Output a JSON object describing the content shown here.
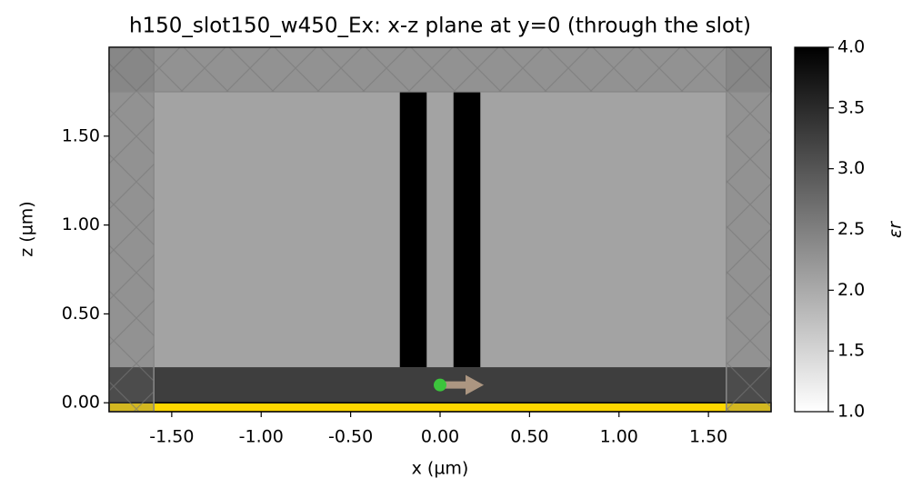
{
  "chart_data": {
    "type": "structure",
    "title": "h150_slot150_w450_Ex: x-z plane at y=0 (through the slot)",
    "x_label": "x (µm)",
    "y_label": "z (µm)",
    "xlim": [
      -1.85,
      1.85
    ],
    "ylim": [
      -0.05,
      2.0
    ],
    "xticks": [
      {
        "value": -1.5,
        "label": "-1.50"
      },
      {
        "value": -1,
        "label": "-1.00"
      },
      {
        "value": -0.5,
        "label": "-0.50"
      },
      {
        "value": 0,
        "label": "0.00"
      },
      {
        "value": 0.5,
        "label": "0.50"
      },
      {
        "value": 1,
        "label": "1.00"
      },
      {
        "value": 1.5,
        "label": "1.50"
      }
    ],
    "yticks": [
      {
        "value": 0,
        "label": "0.00"
      },
      {
        "value": 0.5,
        "label": "0.50"
      },
      {
        "value": 1,
        "label": "1.00"
      },
      {
        "value": 1.5,
        "label": "1.50"
      }
    ],
    "background_eps": 2.08,
    "structures": [
      {
        "x": [
          -1.85,
          1.85
        ],
        "z": [
          0,
          0.2
        ],
        "eps": 3.27
      },
      {
        "x": [
          -0.225,
          -0.075
        ],
        "z": [
          0.2,
          1.75
        ],
        "eps": 4
      },
      {
        "x": [
          0.075,
          0.225
        ],
        "z": [
          0.2,
          1.75
        ],
        "eps": 4
      }
    ],
    "pec": {
      "x": [
        -1.85,
        1.85
      ],
      "z": [
        -0.05,
        0
      ],
      "color": "#ffd700"
    },
    "pml": [
      {
        "x": [
          -1.85,
          -1.6
        ],
        "z": [
          -0.05,
          2.0
        ]
      },
      {
        "x": [
          1.6,
          1.85
        ],
        "z": [
          -0.05,
          2.0
        ]
      },
      {
        "x": [
          -1.85,
          1.85
        ],
        "z": [
          1.75,
          2.0
        ]
      }
    ],
    "source": {
      "x": 0,
      "z": 0.1,
      "color": "#3cc43c",
      "arrow_color": "#b8a088"
    },
    "colorbar": {
      "label": "εr",
      "lim": [
        1,
        4
      ],
      "ticks": [
        {
          "value": 1,
          "label": "1.0"
        },
        1.5,
        {
          "value": 2,
          "label": "2.0"
        },
        2.5,
        {
          "value": 3,
          "label": "3.0"
        },
        3.5,
        {
          "value": 4,
          "label": "4.0"
        }
      ]
    }
  }
}
